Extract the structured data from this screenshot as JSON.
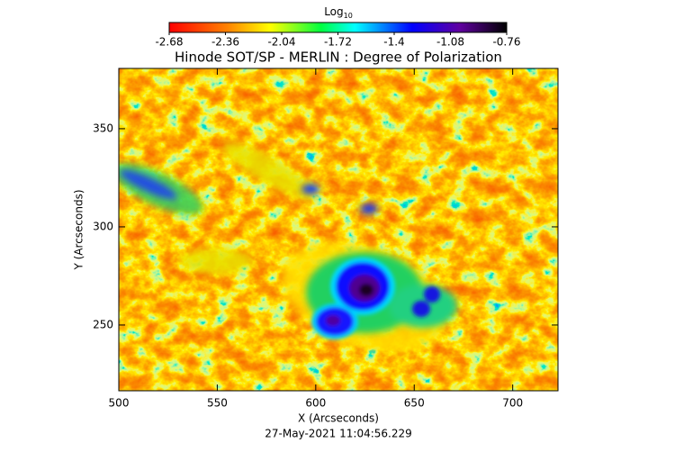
{
  "chart_data": {
    "type": "heatmap",
    "title": "Hinode SOT/SP - MERLIN : Degree of Polarization",
    "colorbar": {
      "label": "Log",
      "label_subscript": "10",
      "lim": [
        -2.68,
        -0.76
      ],
      "ticks": [
        -2.68,
        -2.36,
        -2.04,
        -1.72,
        -1.4,
        -1.08,
        -0.76
      ]
    },
    "x_label": "X (Arcseconds)",
    "y_label": "Y (Arcseconds)",
    "xlim": [
      500,
      723
    ],
    "xticks": [
      500,
      550,
      600,
      650,
      700
    ],
    "ylim": [
      216.5,
      380.7
    ],
    "yticks": [
      250,
      300,
      350
    ],
    "footer": "27-May-2021 11:04:56.229"
  }
}
